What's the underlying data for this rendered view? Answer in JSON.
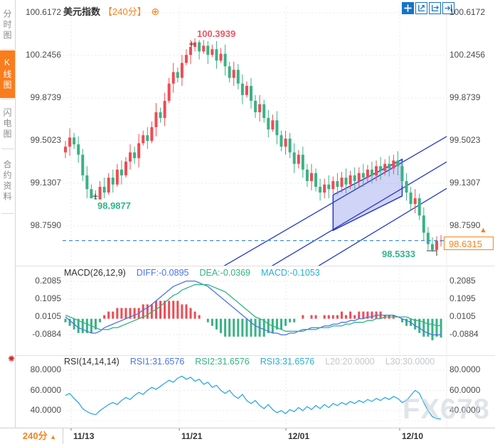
{
  "header": {
    "symbol": "美元指数",
    "period": "【240分】"
  },
  "icons": {
    "expand": "⊕",
    "sun": "✺",
    "footer_arrow": "▲",
    "tag_arrow": "▲",
    "toolbar": [
      "move-crosshair",
      "fit-x-axis",
      "fit-y-axis",
      "pan-right"
    ]
  },
  "sidebar": {
    "tabs": [
      {
        "label": "分时图",
        "active": false
      },
      {
        "label": "K线图",
        "active": true
      },
      {
        "label": "闪电图",
        "active": false
      },
      {
        "label": "合约资料",
        "active": false
      }
    ]
  },
  "price_axis": {
    "labels": [
      "100.6172",
      "100.2456",
      "99.8739",
      "99.5023",
      "99.1307",
      "98.7590"
    ]
  },
  "annotations": {
    "high": "100.3939",
    "low_left": "98.9877",
    "low_right": "98.5333",
    "last_price": "98.6315"
  },
  "macd_header": {
    "title": "MACD(26,12,9)",
    "diff": "DIFF:-0.0895",
    "dea": "DEA:-0.0369",
    "macd": "MACD:-0.1053",
    "axis_labels": [
      "0.2085",
      "0.1095",
      "0.0105",
      "-0.0884"
    ]
  },
  "rsi_header": {
    "title": "RSI(14,14,14)",
    "rsi1": "RSI1:31.6576",
    "rsi2": "RSI2:31.6576",
    "rsi3": "RSI3:31.6576",
    "l20": "L20:20.0000",
    "l30": "L30:30.0000",
    "axis_labels": [
      "80.0000",
      "60.0000",
      "40.0000"
    ]
  },
  "time_axis": {
    "labels": [
      "11/13",
      "11/21",
      "12/01",
      "12/10"
    ]
  },
  "footer": {
    "period_label": "240分"
  },
  "watermark": "FX678",
  "colors": {
    "accent": "#f7821c",
    "tab_active_bg": "#f97d1c",
    "up": "#ee4b54",
    "down": "#3ab285",
    "channel": "#2438c8",
    "channel_fill": "rgba(98,114,226,0.30)",
    "last_price_line": "#3d8fd8",
    "diff_line": "#4a74e8",
    "dea_line": "#33b284",
    "rsi_line": "#2fa9e0",
    "toolbar_blue": "#1673c5",
    "grid": "#e8e8e8",
    "anno_red": "#ee5560",
    "anno_green": "#2eb58a"
  },
  "chart_data": {
    "type": "candlestick",
    "symbol": "美元指数",
    "interval": "240分",
    "price_axis_ticks": [
      100.6172,
      100.2456,
      99.8739,
      99.5023,
      99.1307,
      98.759
    ],
    "time_ticks": [
      "11/13",
      "11/21",
      "12/01",
      "12/10"
    ],
    "last_price": 98.6315,
    "high_label": 100.3939,
    "low_label": 98.9877,
    "swing_low_label": 98.5333,
    "candles": [
      [
        99.4,
        99.5,
        99.35,
        99.45
      ],
      [
        99.45,
        99.61,
        99.37,
        99.53
      ],
      [
        99.53,
        99.57,
        99.43,
        99.47
      ],
      [
        99.47,
        99.54,
        99.31,
        99.38
      ],
      [
        99.38,
        99.43,
        99.15,
        99.2
      ],
      [
        99.2,
        99.28,
        99.0,
        99.08
      ],
      [
        99.08,
        99.12,
        99.0,
        99.0
      ],
      [
        99.0,
        99.07,
        98.9877,
        98.99
      ],
      [
        98.99,
        99.15,
        98.99,
        99.1
      ],
      [
        99.1,
        99.18,
        99.0,
        99.05
      ],
      [
        99.05,
        99.22,
        99.03,
        99.18
      ],
      [
        99.18,
        99.25,
        99.05,
        99.12
      ],
      [
        99.12,
        99.3,
        99.1,
        99.25
      ],
      [
        99.25,
        99.33,
        99.12,
        99.2
      ],
      [
        99.2,
        99.36,
        99.18,
        99.32
      ],
      [
        99.32,
        99.47,
        99.25,
        99.4
      ],
      [
        99.4,
        99.45,
        99.3,
        99.35
      ],
      [
        99.35,
        99.56,
        99.27,
        99.48
      ],
      [
        99.48,
        99.59,
        99.46,
        99.55
      ],
      [
        99.55,
        99.62,
        99.43,
        99.5
      ],
      [
        99.5,
        99.67,
        99.48,
        99.62
      ],
      [
        99.62,
        99.83,
        99.54,
        99.75
      ],
      [
        99.75,
        99.79,
        99.66,
        99.7
      ],
      [
        99.7,
        99.92,
        99.63,
        99.85
      ],
      [
        99.85,
        100.05,
        99.83,
        100.0
      ],
      [
        100.0,
        100.18,
        99.92,
        100.1
      ],
      [
        100.1,
        100.14,
        100.01,
        100.05
      ],
      [
        100.05,
        100.25,
        99.98,
        100.18
      ],
      [
        100.18,
        100.3,
        100.16,
        100.25
      ],
      [
        100.25,
        100.38,
        100.17,
        100.32
      ],
      [
        100.32,
        100.3939,
        100.28,
        100.36
      ],
      [
        100.36,
        100.38,
        100.21,
        100.28
      ],
      [
        100.28,
        100.38,
        100.26,
        100.33
      ],
      [
        100.33,
        100.37,
        100.17,
        100.25
      ],
      [
        100.25,
        100.34,
        100.23,
        100.3
      ],
      [
        100.3,
        100.37,
        100.13,
        100.2
      ],
      [
        100.2,
        100.31,
        100.18,
        100.26
      ],
      [
        100.26,
        100.34,
        100.07,
        100.15
      ],
      [
        100.15,
        100.19,
        100.01,
        100.05
      ],
      [
        100.05,
        100.19,
        99.98,
        100.12
      ],
      [
        100.12,
        100.17,
        99.95,
        100.0
      ],
      [
        100.0,
        100.08,
        99.82,
        99.9
      ],
      [
        99.9,
        100.02,
        99.88,
        99.98
      ],
      [
        99.98,
        100.05,
        99.78,
        99.85
      ],
      [
        99.85,
        99.9,
        99.7,
        99.75
      ],
      [
        99.75,
        99.9,
        99.67,
        99.82
      ],
      [
        99.82,
        99.86,
        99.66,
        99.7
      ],
      [
        99.7,
        99.77,
        99.53,
        99.6
      ],
      [
        99.6,
        99.73,
        99.58,
        99.68
      ],
      [
        99.68,
        99.76,
        99.47,
        99.55
      ],
      [
        99.55,
        99.59,
        99.41,
        99.45
      ],
      [
        99.45,
        99.59,
        99.38,
        99.52
      ],
      [
        99.52,
        99.57,
        99.35,
        99.4
      ],
      [
        99.4,
        99.48,
        99.22,
        99.3
      ],
      [
        99.3,
        99.42,
        99.26,
        99.38
      ],
      [
        99.38,
        99.45,
        99.18,
        99.25
      ],
      [
        99.25,
        99.3,
        99.1,
        99.15
      ],
      [
        99.15,
        99.3,
        99.07,
        99.22
      ],
      [
        99.22,
        99.26,
        99.06,
        99.1
      ],
      [
        99.1,
        99.17,
        98.98,
        99.05
      ],
      [
        99.05,
        99.17,
        99.0,
        99.12
      ],
      [
        99.12,
        99.2,
        99.0,
        99.08
      ],
      [
        99.08,
        99.19,
        99.04,
        99.15
      ],
      [
        99.15,
        99.22,
        99.03,
        99.1
      ],
      [
        99.1,
        99.23,
        99.05,
        99.18
      ],
      [
        99.18,
        99.26,
        99.04,
        99.12
      ],
      [
        99.12,
        99.24,
        99.08,
        99.2
      ],
      [
        99.2,
        99.27,
        99.08,
        99.15
      ],
      [
        99.15,
        99.27,
        99.1,
        99.22
      ],
      [
        99.22,
        99.3,
        99.1,
        99.18
      ],
      [
        99.18,
        99.29,
        99.14,
        99.25
      ],
      [
        99.25,
        99.32,
        99.13,
        99.2
      ],
      [
        99.2,
        99.33,
        99.15,
        99.28
      ],
      [
        99.28,
        99.36,
        99.16,
        99.24
      ],
      [
        99.24,
        99.34,
        99.2,
        99.3
      ],
      [
        99.3,
        99.37,
        99.19,
        99.26
      ],
      [
        99.26,
        99.38,
        99.21,
        99.33
      ],
      [
        99.33,
        99.41,
        99.2,
        99.28
      ],
      [
        99.28,
        99.32,
        99.11,
        99.15
      ],
      [
        99.15,
        99.22,
        98.98,
        99.05
      ],
      [
        99.05,
        99.1,
        98.9,
        98.95
      ],
      [
        98.95,
        99.08,
        98.87,
        99.0
      ],
      [
        99.0,
        99.04,
        98.81,
        98.85
      ],
      [
        98.85,
        98.92,
        98.63,
        98.7
      ],
      [
        98.7,
        98.75,
        98.55,
        98.6
      ],
      [
        98.6,
        98.66,
        98.5333,
        98.55
      ],
      [
        98.55,
        98.67,
        98.54,
        98.63
      ],
      [
        98.63,
        98.68,
        98.58,
        98.6315
      ]
    ],
    "macd": {
      "params": "26,12,9",
      "diff": -0.0895,
      "dea": -0.0369,
      "macd": -0.1053,
      "axis_ticks": [
        0.2085,
        0.1095,
        0.0105,
        -0.0884
      ],
      "diff_series": [
        0.01,
        -0.01,
        -0.03,
        -0.05,
        -0.06,
        -0.07,
        -0.08,
        -0.08,
        -0.07,
        -0.05,
        -0.04,
        -0.03,
        -0.02,
        -0.01,
        0,
        0.01,
        0.02,
        0.03,
        0.05,
        0.06,
        0.08,
        0.1,
        0.12,
        0.14,
        0.16,
        0.18,
        0.19,
        0.2,
        0.21,
        0.21,
        0.21,
        0.2,
        0.19,
        0.18,
        0.16,
        0.14,
        0.12,
        0.1,
        0.08,
        0.06,
        0.04,
        0.02,
        0,
        -0.02,
        -0.04,
        -0.05,
        -0.06,
        -0.07,
        -0.08,
        -0.08,
        -0.09,
        -0.09,
        -0.08,
        -0.08,
        -0.07,
        -0.06,
        -0.06,
        -0.05,
        -0.05,
        -0.05,
        -0.04,
        -0.04,
        -0.03,
        -0.03,
        -0.02,
        -0.02,
        -0.01,
        -0.01,
        0,
        0,
        0.01,
        0.01,
        0.02,
        0.02,
        0.02,
        0.02,
        0.02,
        0.01,
        0,
        -0.01,
        -0.02,
        -0.04,
        -0.05,
        -0.07,
        -0.08,
        -0.09,
        -0.09,
        -0.0895
      ],
      "dea_series": [
        0.02,
        0.01,
        0,
        -0.01,
        -0.02,
        -0.03,
        -0.04,
        -0.05,
        -0.06,
        -0.06,
        -0.06,
        -0.05,
        -0.05,
        -0.04,
        -0.03,
        -0.02,
        -0.01,
        0,
        0.01,
        0.02,
        0.04,
        0.05,
        0.07,
        0.09,
        0.11,
        0.13,
        0.14,
        0.16,
        0.17,
        0.18,
        0.19,
        0.19,
        0.19,
        0.19,
        0.18,
        0.17,
        0.16,
        0.15,
        0.13,
        0.11,
        0.09,
        0.07,
        0.05,
        0.03,
        0.01,
        0,
        -0.01,
        -0.03,
        -0.04,
        -0.05,
        -0.06,
        -0.07,
        -0.07,
        -0.07,
        -0.07,
        -0.07,
        -0.06,
        -0.06,
        -0.06,
        -0.05,
        -0.05,
        -0.05,
        -0.04,
        -0.04,
        -0.04,
        -0.03,
        -0.03,
        -0.02,
        -0.02,
        -0.02,
        -0.01,
        -0.01,
        0,
        0,
        0.01,
        0.01,
        0.01,
        0.01,
        0.01,
        0.01,
        0,
        -0.01,
        -0.01,
        -0.02,
        -0.03,
        -0.03,
        -0.04,
        -0.0369
      ]
    },
    "rsi": {
      "params": "14,14,14",
      "rsi1": 31.6576,
      "rsi2": 31.6576,
      "rsi3": 31.6576,
      "l20": 20.0,
      "l30": 30.0,
      "axis_ticks": [
        80,
        60,
        40
      ],
      "series": [
        55,
        57,
        52,
        48,
        42,
        39,
        37,
        36,
        40,
        43,
        46,
        48,
        46,
        50,
        53,
        51,
        55,
        58,
        56,
        60,
        63,
        61,
        64,
        67,
        70,
        68,
        72,
        74,
        71,
        73,
        69,
        71,
        66,
        68,
        63,
        65,
        60,
        57,
        60,
        55,
        52,
        56,
        50,
        47,
        50,
        45,
        42,
        46,
        41,
        38,
        40,
        37,
        41,
        39,
        43,
        40,
        44,
        41,
        45,
        42,
        46,
        43,
        47,
        45,
        48,
        46,
        49,
        47,
        50,
        48,
        51,
        49,
        52,
        50,
        53,
        51,
        54,
        52,
        48,
        50,
        55,
        60,
        57,
        48,
        40,
        34,
        32,
        31.6576
      ]
    },
    "drawings": {
      "trendlines": [
        {
          "i1": 34,
          "p1": 98.35,
          "i2": 92,
          "p2": 99.62
        },
        {
          "i1": 34,
          "p1": 98.1,
          "i2": 92,
          "p2": 99.4
        },
        {
          "i1": 34,
          "p1": 97.85,
          "i2": 92,
          "p2": 99.17
        }
      ],
      "channel_box": [
        [
          62,
          99.03
        ],
        [
          78,
          99.34
        ],
        [
          78,
          99.02
        ],
        [
          62,
          98.72
        ]
      ]
    }
  }
}
